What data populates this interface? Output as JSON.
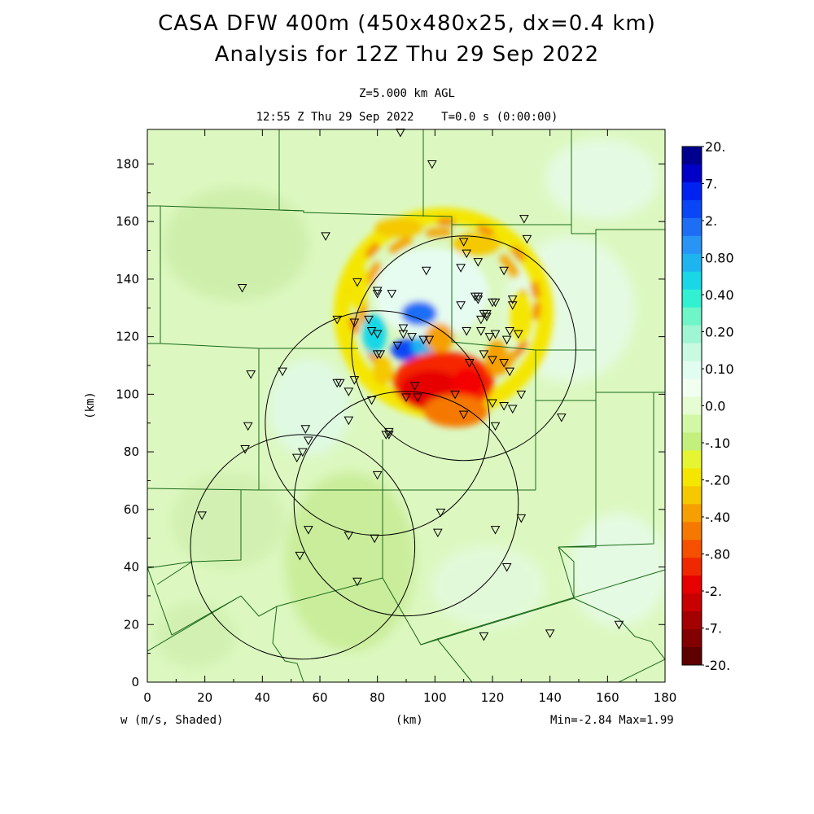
{
  "chart_data": {
    "type": "heatmap",
    "title": "CASA DFW 400m (450x480x25, dx=0.4 km)",
    "subtitle": "Analysis for 12Z Thu 29 Sep 2022",
    "level_label": "Z=5.000 km AGL",
    "time_label": "12:55 Z Thu 29 Sep 2022    T=0.0 s (0:00:00)",
    "xlabel": "(km)",
    "ylabel": "(km)",
    "field_label": "w (m/s, Shaded)",
    "minmax_label": "Min=-2.84 Max=1.99",
    "xlim": [
      0,
      180
    ],
    "ylim": [
      0,
      192
    ],
    "xticks": [
      "0",
      "20",
      "40",
      "60",
      "80",
      "100",
      "120",
      "140",
      "160",
      "180"
    ],
    "yticks": [
      "0",
      "20",
      "40",
      "60",
      "80",
      "100",
      "120",
      "140",
      "160",
      "180"
    ],
    "colorbar": {
      "labels": [
        "20.",
        "7.",
        "2.",
        "0.80",
        "0.40",
        "0.20",
        "0.10",
        "0.0",
        "-.10",
        "-.20",
        "-.40",
        "-.80",
        "-2.",
        "-7.",
        "-20."
      ],
      "colors": [
        "#00008e",
        "#0000c8",
        "#0022f0",
        "#0a46f5",
        "#1e6ef5",
        "#2894f5",
        "#1eb4f0",
        "#19d7e6",
        "#32f0d2",
        "#6ef5c8",
        "#a0f5d2",
        "#c8fae1",
        "#e1fcf0",
        "#f0fff0",
        "#e6fcd2",
        "#d2f7a5",
        "#c3f07d",
        "#e6f532",
        "#f5e600",
        "#f5c800",
        "#f5a000",
        "#f57800",
        "#f55000",
        "#f02800",
        "#e60000",
        "#c80000",
        "#a50000",
        "#820000",
        "#5f0000"
      ]
    },
    "radar_rings": [
      {
        "x": 110,
        "y": 116,
        "r": 39
      },
      {
        "x": 80,
        "y": 90,
        "r": 39
      },
      {
        "x": 90,
        "y": 62,
        "r": 39
      },
      {
        "x": 54,
        "y": 47,
        "r": 39
      }
    ],
    "stations": [
      [
        88,
        191
      ],
      [
        99,
        180
      ],
      [
        131,
        161
      ],
      [
        132,
        154
      ],
      [
        62,
        155
      ],
      [
        110,
        153
      ],
      [
        111,
        149
      ],
      [
        115,
        146
      ],
      [
        109,
        144
      ],
      [
        97,
        143
      ],
      [
        124,
        143
      ],
      [
        73,
        139
      ],
      [
        33,
        137
      ],
      [
        80,
        136
      ],
      [
        80,
        135
      ],
      [
        85,
        135
      ],
      [
        115,
        134
      ],
      [
        114,
        134
      ],
      [
        115,
        133
      ],
      [
        127,
        133
      ],
      [
        127,
        131
      ],
      [
        121,
        132
      ],
      [
        120,
        132
      ],
      [
        109,
        131
      ],
      [
        117,
        128
      ],
      [
        118,
        128
      ],
      [
        118,
        127
      ],
      [
        116,
        126
      ],
      [
        66,
        126
      ],
      [
        72,
        125
      ],
      [
        77,
        126
      ],
      [
        89,
        123
      ],
      [
        78,
        122
      ],
      [
        111,
        122
      ],
      [
        116,
        122
      ],
      [
        126,
        122
      ],
      [
        129,
        121
      ],
      [
        80,
        121
      ],
      [
        89,
        121
      ],
      [
        92,
        120
      ],
      [
        119,
        120
      ],
      [
        121,
        121
      ],
      [
        125,
        119
      ],
      [
        96,
        119
      ],
      [
        98,
        119
      ],
      [
        87,
        117
      ],
      [
        80,
        114
      ],
      [
        81,
        114
      ],
      [
        117,
        114
      ],
      [
        120,
        112
      ],
      [
        124,
        111
      ],
      [
        112,
        111
      ],
      [
        126,
        108
      ],
      [
        36,
        107
      ],
      [
        47,
        108
      ],
      [
        66,
        104
      ],
      [
        67,
        104
      ],
      [
        72,
        105
      ],
      [
        70,
        101
      ],
      [
        93,
        103
      ],
      [
        107,
        100
      ],
      [
        130,
        100
      ],
      [
        78,
        98
      ],
      [
        90,
        99
      ],
      [
        94,
        99
      ],
      [
        120,
        97
      ],
      [
        124,
        96
      ],
      [
        127,
        95
      ],
      [
        110,
        93
      ],
      [
        144,
        92
      ],
      [
        70,
        91
      ],
      [
        121,
        89
      ],
      [
        35,
        89
      ],
      [
        55,
        88
      ],
      [
        84,
        87
      ],
      [
        83,
        86
      ],
      [
        84,
        86
      ],
      [
        56,
        84
      ],
      [
        34,
        81
      ],
      [
        54,
        80
      ],
      [
        52,
        78
      ],
      [
        80,
        72
      ],
      [
        19,
        58
      ],
      [
        102,
        59
      ],
      [
        130,
        57
      ],
      [
        56,
        53
      ],
      [
        101,
        52
      ],
      [
        70,
        51
      ],
      [
        79,
        50
      ],
      [
        121,
        53
      ],
      [
        53,
        44
      ],
      [
        125,
        40
      ],
      [
        73,
        35
      ],
      [
        164,
        20
      ],
      [
        140,
        17
      ],
      [
        117,
        16
      ]
    ]
  }
}
